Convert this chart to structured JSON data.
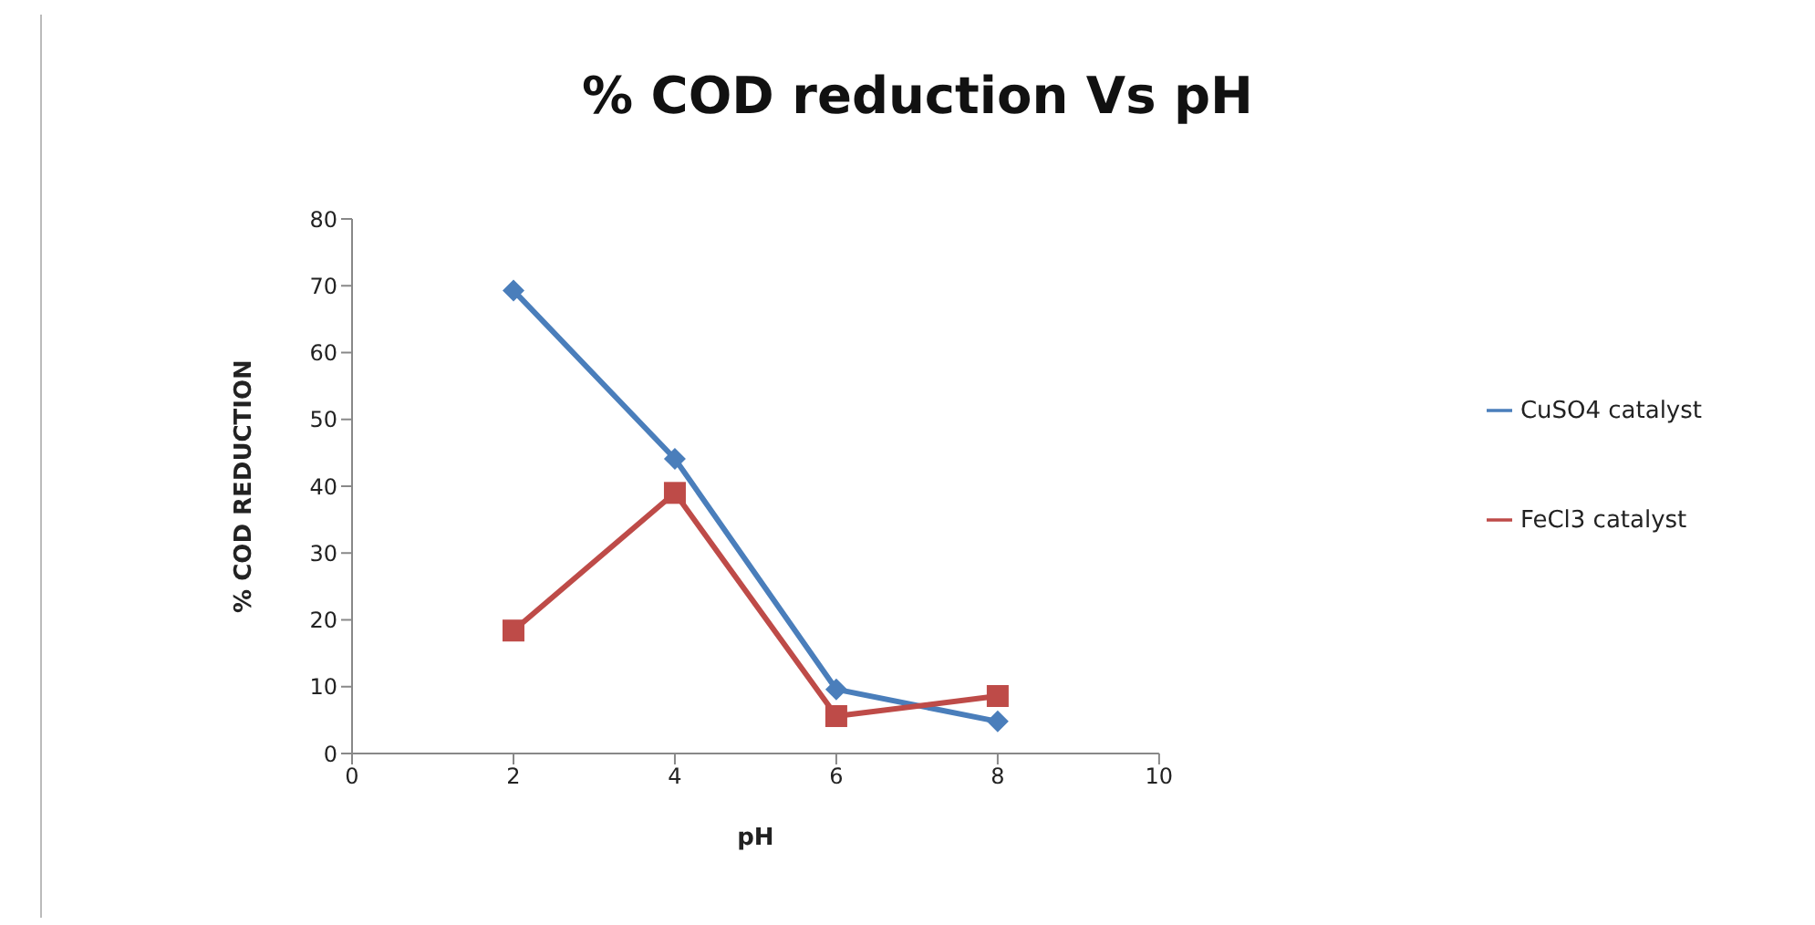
{
  "chart_data": {
    "type": "line",
    "title": "% COD reduction Vs pH",
    "xlabel": "pH",
    "ylabel": "% COD REDUCTION",
    "x": [
      2,
      4,
      6,
      8
    ],
    "series": [
      {
        "name": "CuSO4 catalyst",
        "color": "#4a7ebb",
        "values": [
          69.3,
          44.1,
          9.6,
          4.8
        ],
        "marker": "diamond"
      },
      {
        "name": "FeCl3 catalyst",
        "color": "#be4b48",
        "values": [
          18.4,
          39,
          5.6,
          8.6
        ],
        "marker": "square"
      }
    ],
    "xlim": [
      0,
      10
    ],
    "xticks": [
      0,
      2,
      4,
      6,
      8,
      10
    ],
    "ylim": [
      0,
      80
    ],
    "yticks": [
      0,
      10,
      20,
      30,
      40,
      50,
      60,
      70,
      80
    ],
    "grid": false,
    "legend": "right",
    "line_style": "solid"
  }
}
